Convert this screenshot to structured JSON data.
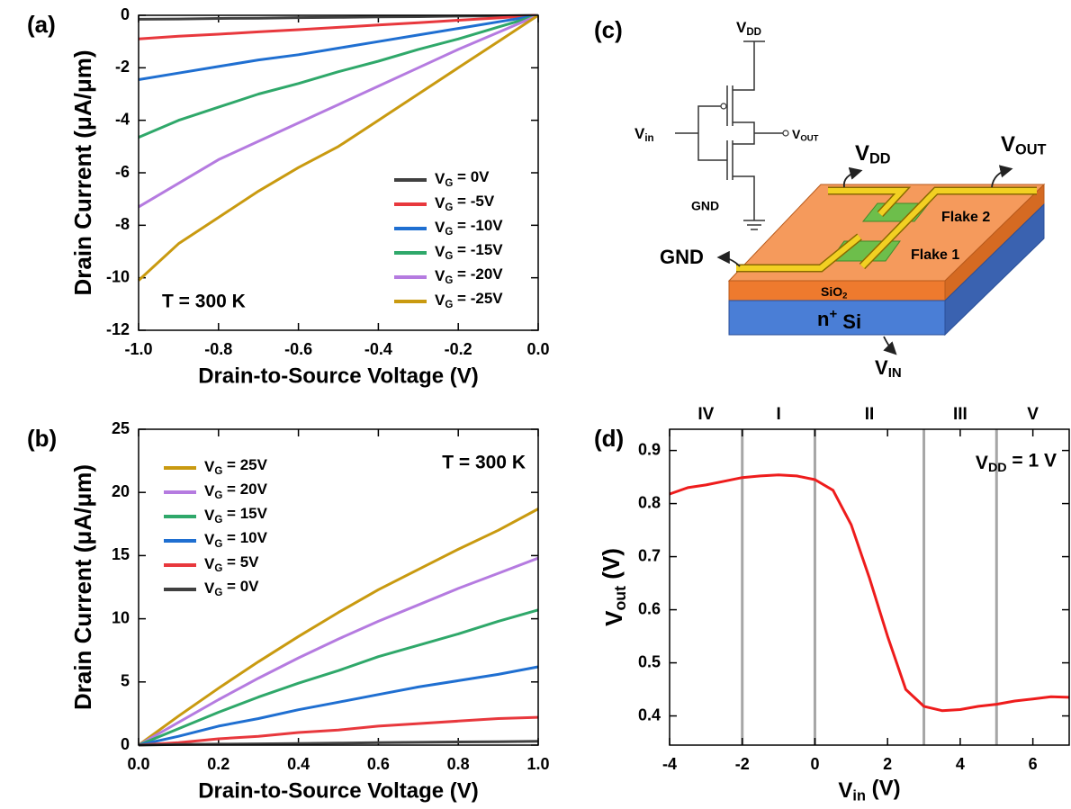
{
  "chart_data": [
    {
      "panel": "(a)",
      "type": "line",
      "xlabel": "Drain-to-Source Voltage (V)",
      "ylabel": "Drain Current (μA/μm)",
      "xlim": [
        -1,
        0
      ],
      "ylim": [
        -12,
        0
      ],
      "xticks": [
        {
          "value": -1,
          "label": "-1.0"
        },
        -0.8,
        -0.6,
        -0.4,
        -0.2,
        {
          "value": 0,
          "label": "0.0"
        }
      ],
      "yticks": [
        -12,
        -10,
        -8,
        -6,
        -4,
        -2,
        0
      ],
      "legend": "lower right",
      "annotation": "T = 300 K",
      "x": [
        -1,
        -0.9,
        -0.8,
        -0.7,
        -0.6,
        -0.5,
        -0.4,
        -0.3,
        -0.2,
        -0.1,
        0
      ],
      "series": [
        {
          "name": "VG = 0V",
          "color": "#404040",
          "values": [
            -0.15,
            -0.14,
            -0.12,
            -0.11,
            -0.09,
            -0.08,
            -0.06,
            -0.05,
            -0.03,
            -0.02,
            0
          ]
        },
        {
          "name": "VG = -5V",
          "color": "#e8383d",
          "values": [
            -0.9,
            -0.8,
            -0.72,
            -0.63,
            -0.55,
            -0.46,
            -0.37,
            -0.28,
            -0.19,
            -0.1,
            0
          ]
        },
        {
          "name": "VG = -10V",
          "color": "#1f6fd1",
          "values": [
            -2.45,
            -2.2,
            -1.95,
            -1.7,
            -1.5,
            -1.25,
            -1.0,
            -0.75,
            -0.5,
            -0.25,
            0
          ]
        },
        {
          "name": "VG = -15V",
          "color": "#2fa86a",
          "values": [
            -4.65,
            -4.0,
            -3.5,
            -3.0,
            -2.6,
            -2.15,
            -1.75,
            -1.3,
            -0.9,
            -0.45,
            0
          ]
        },
        {
          "name": "VG = -20V",
          "color": "#b57be0",
          "values": [
            -7.3,
            -6.4,
            -5.5,
            -4.8,
            -4.1,
            -3.4,
            -2.7,
            -2.0,
            -1.3,
            -0.65,
            0
          ]
        },
        {
          "name": "VG = -25V",
          "color": "#c99a10",
          "values": [
            -10.1,
            -8.7,
            -7.7,
            -6.7,
            -5.8,
            -5.0,
            -4.0,
            -3.0,
            -2.0,
            -1.0,
            0
          ]
        }
      ]
    },
    {
      "panel": "(b)",
      "type": "line",
      "xlabel": "Drain-to-Source Voltage (V)",
      "ylabel": "Drain Current (μA/μm)",
      "xlim": [
        0,
        1
      ],
      "ylim": [
        0,
        25
      ],
      "xticks": [
        {
          "value": 0,
          "label": "0.0"
        },
        0.2,
        0.4,
        0.6,
        0.8,
        {
          "value": 1,
          "label": "1.0"
        }
      ],
      "yticks": [
        0,
        5,
        10,
        15,
        20,
        25
      ],
      "legend": "upper left",
      "annotation": "T = 300 K",
      "x": [
        0,
        0.1,
        0.2,
        0.3,
        0.4,
        0.5,
        0.6,
        0.7,
        0.8,
        0.9,
        1
      ],
      "series": [
        {
          "name": "VG = 25V",
          "color": "#c99a10",
          "values": [
            0,
            2.3,
            4.5,
            6.6,
            8.6,
            10.5,
            12.3,
            13.9,
            15.5,
            17,
            18.7
          ]
        },
        {
          "name": "VG = 20V",
          "color": "#b57be0",
          "values": [
            0,
            1.8,
            3.6,
            5.3,
            6.9,
            8.4,
            9.8,
            11.1,
            12.4,
            13.6,
            14.8
          ]
        },
        {
          "name": "VG = 15V",
          "color": "#2fa86a",
          "values": [
            0,
            1.3,
            2.6,
            3.8,
            4.9,
            5.9,
            7.0,
            7.9,
            8.8,
            9.8,
            10.7
          ]
        },
        {
          "name": "VG = 10V",
          "color": "#1f6fd1",
          "values": [
            0,
            0.7,
            1.5,
            2.1,
            2.8,
            3.4,
            4.0,
            4.6,
            5.1,
            5.6,
            6.2
          ]
        },
        {
          "name": "VG = 5V",
          "color": "#e8383d",
          "values": [
            0,
            0.2,
            0.5,
            0.7,
            1.0,
            1.2,
            1.5,
            1.7,
            1.9,
            2.1,
            2.2
          ]
        },
        {
          "name": "VG = 0V",
          "color": "#404040",
          "values": [
            0,
            0.05,
            0.08,
            0.1,
            0.13,
            0.16,
            0.19,
            0.22,
            0.25,
            0.27,
            0.3
          ]
        }
      ]
    },
    {
      "panel": "(d)",
      "type": "line",
      "xlabel": "Vin (V)",
      "ylabel": "Vout (V)",
      "xlim": [
        -4,
        7
      ],
      "ylim": [
        0.345,
        0.94
      ],
      "xticks": [
        -4,
        -2,
        0,
        2,
        4,
        6
      ],
      "yticks": [
        0.4,
        0.5,
        0.6,
        0.7,
        0.8,
        0.9
      ],
      "annotation": "VDD = 1 V",
      "vlines": [
        -2,
        0,
        3,
        5
      ],
      "vline_color": "#a6a6a6",
      "regions": [
        "IV",
        "I",
        "II",
        "III",
        "V"
      ],
      "color": "#ee1c1c",
      "x": [
        -4,
        -3.5,
        -3,
        -2.5,
        -2,
        -1.5,
        -1,
        -0.5,
        0,
        0.5,
        1,
        1.5,
        2,
        2.5,
        3,
        3.5,
        4,
        4.5,
        5,
        5.5,
        6,
        6.5,
        7
      ],
      "values": [
        0.818,
        0.83,
        0.835,
        0.842,
        0.849,
        0.852,
        0.854,
        0.852,
        0.845,
        0.825,
        0.76,
        0.66,
        0.55,
        0.45,
        0.418,
        0.41,
        0.412,
        0.418,
        0.422,
        0.428,
        0.432,
        0.436,
        0.435
      ]
    }
  ],
  "diagram": {
    "panel": "(c)",
    "circuit": {
      "vdd": "VDD",
      "vin": "Vin",
      "vout": "VOUT",
      "gnd": "GND"
    },
    "device": {
      "vdd": "VDD",
      "vout": "VOUT",
      "gnd": "GND",
      "flake2": "Flake 2",
      "flake1": "Flake 1",
      "oxide": "SiO2",
      "substrate": "n+ Si",
      "vin": "VIN"
    }
  }
}
